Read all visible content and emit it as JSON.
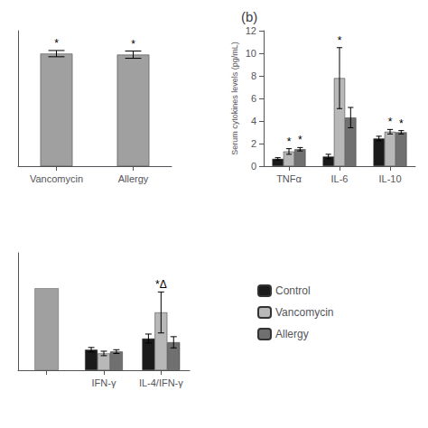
{
  "chart_data": [
    {
      "type": "bar",
      "categories": [
        "Vancomycin",
        "Allergy"
      ],
      "series": [
        {
          "color": "#a0a0a0",
          "values": [
            10.8,
            10.7
          ],
          "errors": [
            0.3,
            0.35
          ]
        }
      ],
      "ylim": [
        0,
        13
      ],
      "tick_labels": "x",
      "grid": false,
      "annotations": [
        {
          "text": "*",
          "category": "Vancomycin"
        },
        {
          "text": "*",
          "category": "Allergy"
        }
      ]
    },
    {
      "type": "bar",
      "title": "(b)",
      "ylabel": "Serum cytokines levels (pg/mL)",
      "categories": [
        "TNFα",
        "IL-6",
        "IL-10"
      ],
      "series": [
        {
          "name": "Control",
          "color": "#1a1a1a",
          "values": [
            0.65,
            0.85,
            2.45
          ],
          "errors": [
            0.1,
            0.2,
            0.2
          ]
        },
        {
          "name": "Vancomycin",
          "color": "#b8b8b8",
          "values": [
            1.3,
            7.8,
            3.05
          ],
          "errors": [
            0.25,
            2.7,
            0.2
          ]
        },
        {
          "name": "Allergy",
          "color": "#707070",
          "values": [
            1.5,
            4.3,
            3.0
          ],
          "errors": [
            0.15,
            0.9,
            0.15
          ]
        }
      ],
      "ylim": [
        0,
        12
      ],
      "yticks": [
        0,
        2,
        4,
        6,
        8,
        10,
        12
      ],
      "grid": false,
      "annotations": [
        {
          "text": "*",
          "series": "Vancomycin",
          "category": "TNFα"
        },
        {
          "text": "*",
          "series": "Allergy",
          "category": "TNFα"
        },
        {
          "text": "*",
          "series": "Vancomycin",
          "category": "IL-6"
        },
        {
          "text": "*",
          "series": "Vancomycin",
          "category": "IL-10"
        },
        {
          "text": "*",
          "series": "Allergy",
          "category": "IL-10"
        }
      ]
    },
    {
      "type": "bar",
      "categories": [
        null,
        "IFN-γ",
        "IL-4/IFN-γ"
      ],
      "series": [
        {
          "name": "Control",
          "color": "#1a1a1a",
          "values": [
            null,
            0.55,
            0.85
          ],
          "errors": [
            null,
            0.06,
            0.12
          ]
        },
        {
          "name": "Vancomycin",
          "color": "#b8b8b8",
          "values": [
            null,
            0.45,
            1.55
          ],
          "errors": [
            null,
            0.06,
            0.55
          ]
        },
        {
          "name": "Allergy",
          "color": "#707070",
          "values": [
            null,
            0.5,
            0.75
          ],
          "errors": [
            null,
            0.05,
            0.15
          ]
        },
        {
          "color": "#a0a0a0",
          "values": [
            2.2,
            null,
            null
          ]
        }
      ],
      "ylim": [
        0,
        3.15
      ],
      "tick_labels": "x",
      "grid": false,
      "legend": "right",
      "annotations": [
        {
          "text": "*Δ",
          "series": "Vancomycin",
          "category": "IL-4/IFN-γ"
        }
      ]
    }
  ]
}
